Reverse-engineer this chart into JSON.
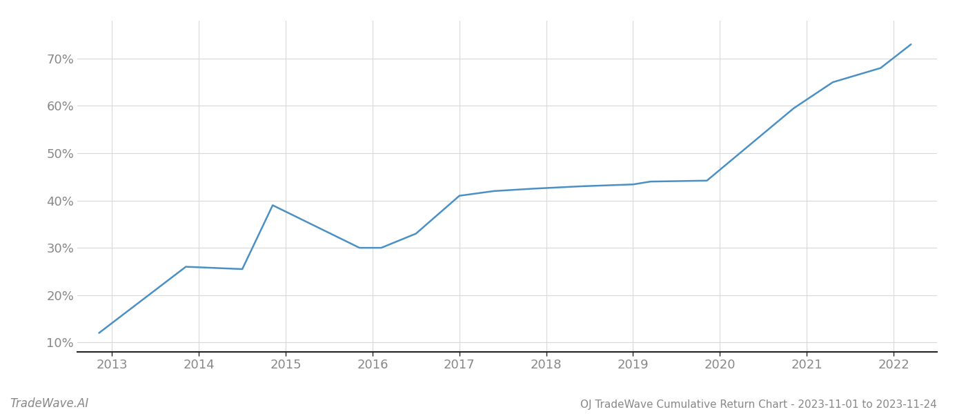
{
  "x": [
    2012.85,
    2013.85,
    2014.5,
    2014.85,
    2015.85,
    2016.1,
    2016.5,
    2017.0,
    2017.4,
    2017.85,
    2018.4,
    2018.85,
    2019.0,
    2019.2,
    2019.85,
    2020.85,
    2021.3,
    2021.85,
    2022.2
  ],
  "y": [
    12,
    26,
    25.5,
    39,
    30,
    30,
    33,
    41,
    42,
    42.5,
    43,
    43.3,
    43.4,
    44,
    44.2,
    59.5,
    65,
    68,
    73
  ],
  "line_color": "#4a90c4",
  "line_width": 1.8,
  "background_color": "#ffffff",
  "grid_color": "#d0d0d0",
  "title": "OJ TradeWave Cumulative Return Chart - 2023-11-01 to 2023-11-24",
  "watermark": "TradeWave.AI",
  "xlim": [
    2012.6,
    2022.5
  ],
  "ylim": [
    8,
    78
  ],
  "yticks": [
    10,
    20,
    30,
    40,
    50,
    60,
    70
  ],
  "xticks": [
    2013,
    2014,
    2015,
    2016,
    2017,
    2018,
    2019,
    2020,
    2021,
    2022
  ],
  "tick_color": "#888888",
  "bottom_spine_color": "#222222",
  "grid_color_light": "#d8d8d8",
  "title_fontsize": 11,
  "watermark_fontsize": 12,
  "tick_fontsize": 13
}
